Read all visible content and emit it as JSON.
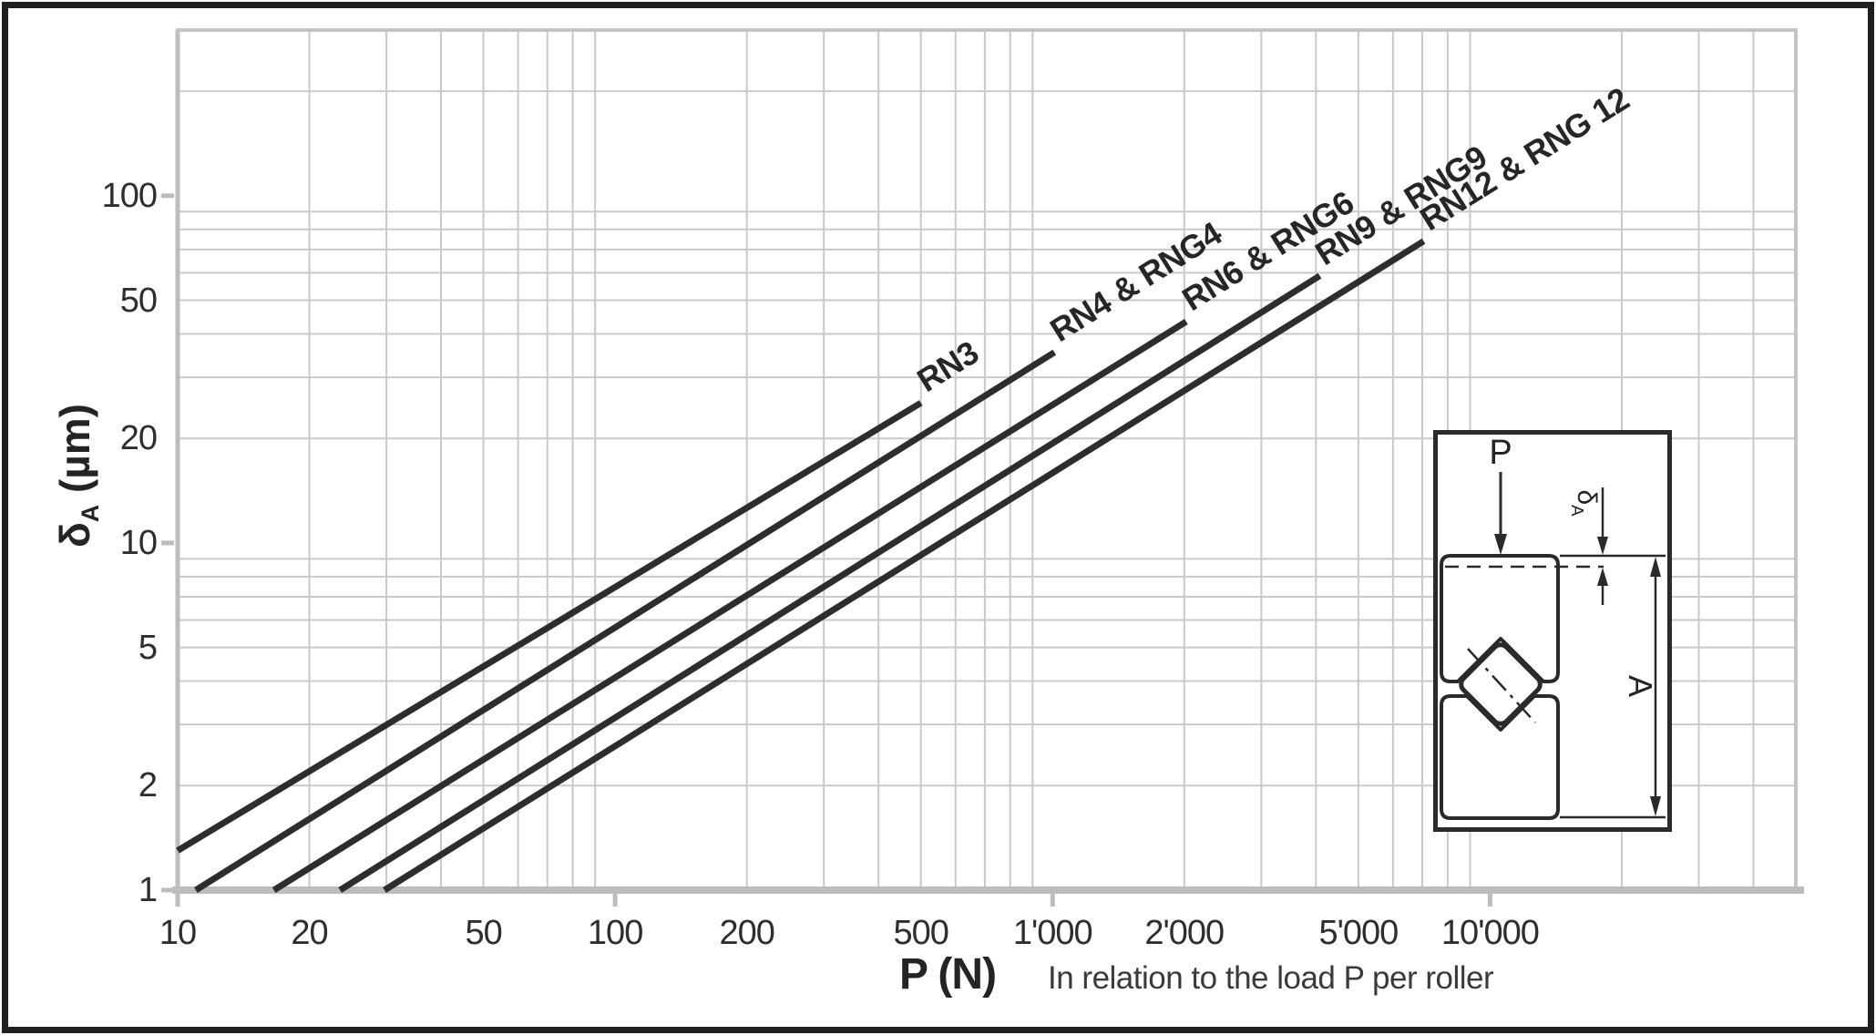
{
  "chart_data": {
    "type": "line",
    "title": "",
    "xlabel": "P (N)",
    "xlabel_note": "In relation to the load P per roller",
    "ylabel_symbol": "δ",
    "ylabel_sub": "A",
    "ylabel_unit": "(µm)",
    "x_scale": "log",
    "y_scale": "log",
    "xlim": [
      10,
      50000
    ],
    "ylim": [
      1,
      300
    ],
    "grid": "log minor + major, both axes",
    "legend_position": "labels at line ends, rotated along lines",
    "x_ticks": [
      {
        "v": 10,
        "label": "10"
      },
      {
        "v": 20,
        "label": "20"
      },
      {
        "v": 50,
        "label": "50"
      },
      {
        "v": 100,
        "label": "100"
      },
      {
        "v": 200,
        "label": "200"
      },
      {
        "v": 500,
        "label": "500"
      },
      {
        "v": 1000,
        "label": "1'000"
      },
      {
        "v": 2000,
        "label": "2'000"
      },
      {
        "v": 5000,
        "label": "5'000"
      },
      {
        "v": 10000,
        "label": "10'000"
      }
    ],
    "y_ticks": [
      {
        "v": 1,
        "label": "1"
      },
      {
        "v": 2,
        "label": "2"
      },
      {
        "v": 5,
        "label": "5"
      },
      {
        "v": 10,
        "label": "10"
      },
      {
        "v": 20,
        "label": "20"
      },
      {
        "v": 50,
        "label": "50"
      },
      {
        "v": 100,
        "label": "100"
      }
    ],
    "series": [
      {
        "name": "RN3",
        "points": [
          [
            10,
            1.3
          ],
          [
            500,
            25.3
          ]
        ]
      },
      {
        "name": "RN4 & RNG4",
        "points": [
          [
            11,
            1
          ],
          [
            1010,
            35.4
          ]
        ]
      },
      {
        "name": "RN6 & RNG6",
        "points": [
          [
            16.6,
            1
          ],
          [
            2020,
            43.4
          ]
        ]
      },
      {
        "name": "RN9 & RNG9",
        "points": [
          [
            23.5,
            1
          ],
          [
            4080,
            58.8
          ]
        ]
      },
      {
        "name": "RN12 & RNG 12",
        "points": [
          [
            29.7,
            1
          ],
          [
            7050,
            74
          ]
        ]
      }
    ],
    "colors": {
      "curve": "#2d2d2d",
      "grid_minor": "#c9c9c9",
      "grid_major": "#bcbcbc",
      "plot_edge": "#c4c4c4",
      "text": "#2e2e2e",
      "note_text": "#3a3a3a",
      "frame": "#1f1f1f",
      "diagram_ink": "#2a2a2a"
    }
  },
  "inset": {
    "p_label": "P",
    "delta_symbol": "δ",
    "delta_sub": "A",
    "a_label": "A"
  }
}
